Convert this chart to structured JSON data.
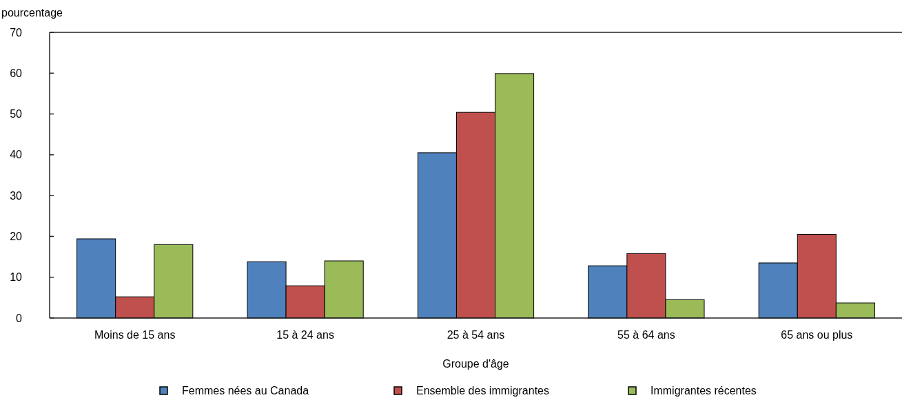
{
  "chart_data": {
    "type": "bar",
    "ylabel": "pourcentage",
    "xlabel": "Groupe d'âge",
    "categories": [
      "Moins de 15 ans",
      "15 à 24 ans",
      "25 à 54 ans",
      "55 à 64 ans",
      "65 ans ou plus"
    ],
    "series": [
      {
        "name": "Femmes nées au Canada",
        "color": "#4f81bd",
        "values": [
          19.4,
          13.8,
          40.5,
          12.8,
          13.5
        ]
      },
      {
        "name": "Ensemble des immigrantes",
        "color": "#c0504d",
        "values": [
          5.2,
          7.9,
          50.4,
          15.8,
          20.5
        ]
      },
      {
        "name": "Immigrantes récentes",
        "color": "#9bbb59",
        "values": [
          18.0,
          14.0,
          59.9,
          4.5,
          3.7
        ]
      }
    ],
    "ylim": [
      0,
      70
    ],
    "yticks": [
      0,
      10,
      20,
      30,
      40,
      50,
      60,
      70
    ],
    "grid": false,
    "legend": "bottom"
  }
}
